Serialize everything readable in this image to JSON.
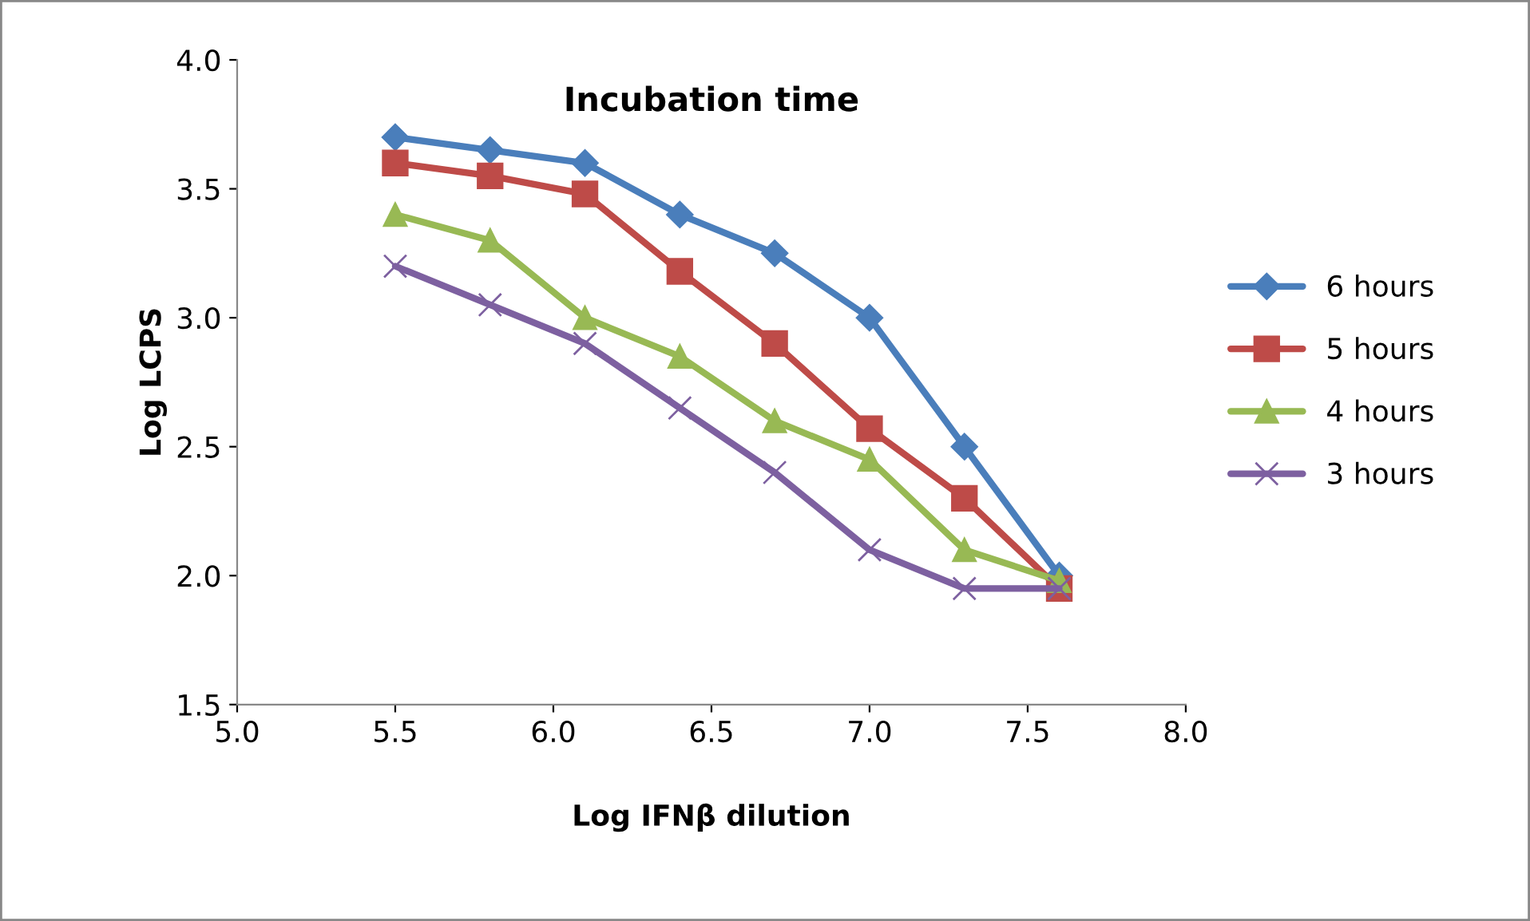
{
  "chart_data": {
    "type": "line",
    "title": "Incubation time",
    "xlabel": "Log IFNβ dilution",
    "ylabel": "Log LCPS",
    "x": [
      5.5,
      5.8,
      6.1,
      6.4,
      6.7,
      7.0,
      7.3,
      7.6
    ],
    "series": [
      {
        "name": "6 hours",
        "color": "#4a7ebb",
        "marker": "diamond",
        "values": [
          3.7,
          3.65,
          3.6,
          3.4,
          3.25,
          3.0,
          2.5,
          2.0
        ]
      },
      {
        "name": "5 hours",
        "color": "#be4b48",
        "marker": "square",
        "values": [
          3.6,
          3.55,
          3.48,
          3.18,
          2.9,
          2.57,
          2.3,
          1.95
        ]
      },
      {
        "name": "4 hours",
        "color": "#98b954",
        "marker": "triangle",
        "values": [
          3.4,
          3.3,
          3.0,
          2.85,
          2.6,
          2.45,
          2.1,
          1.98
        ]
      },
      {
        "name": "3 hours",
        "color": "#7d60a0",
        "marker": "cross",
        "values": [
          3.2,
          3.05,
          2.9,
          2.65,
          2.4,
          2.1,
          1.95,
          1.95
        ]
      }
    ],
    "xlim": [
      5.0,
      8.0
    ],
    "xticks": [
      {
        "value": 5,
        "label": "5.0"
      },
      5.5,
      {
        "value": 6,
        "label": "6.0"
      },
      6.5,
      {
        "value": 7,
        "label": "7.0"
      },
      7.5,
      {
        "value": 8,
        "label": "8.0"
      }
    ],
    "ylim": [
      1.5,
      4.0
    ],
    "yticks": [
      1.5,
      {
        "value": 2,
        "label": "2.0"
      },
      2.5,
      {
        "value": 3,
        "label": "3.0"
      },
      3.5,
      {
        "value": 4,
        "label": "4.0"
      }
    ],
    "grid": false,
    "legend": "right",
    "line_style": "solid"
  }
}
